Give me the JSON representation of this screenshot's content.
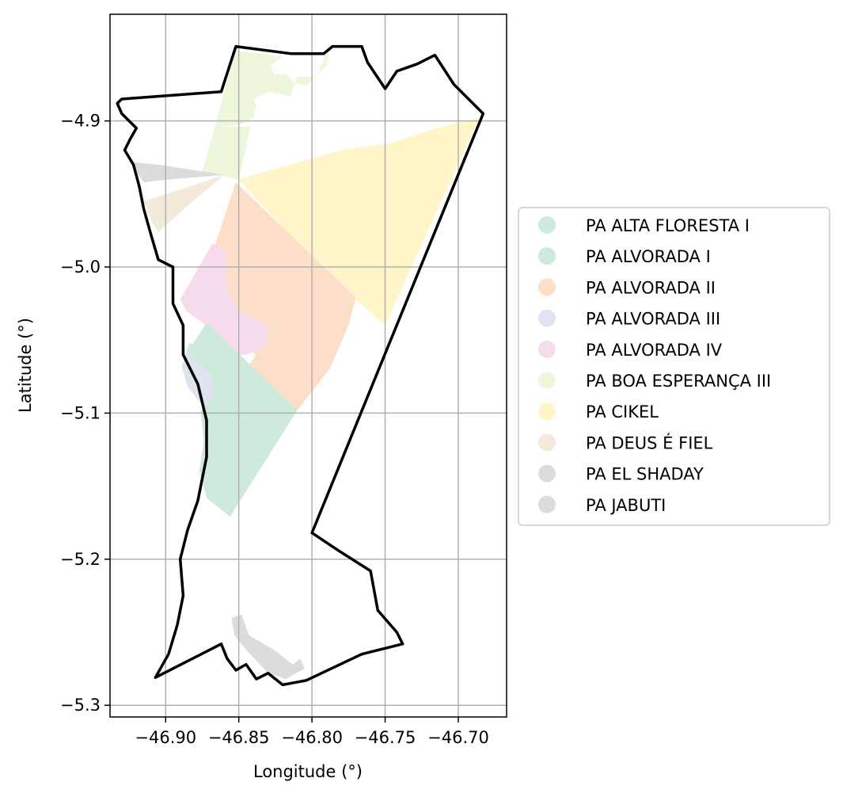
{
  "chart_data": {
    "type": "map",
    "xlabel": "Longitude (°)",
    "ylabel": "Latitude (°)",
    "x_ticks": [
      -46.9,
      -46.85,
      -46.8,
      -46.75,
      -46.7
    ],
    "x_tick_labels": [
      "−46.90",
      "−46.85",
      "−46.80",
      "−46.75",
      "−46.70"
    ],
    "y_ticks": [
      -4.9,
      -5.0,
      -5.1,
      -5.2,
      -5.3
    ],
    "y_tick_labels": [
      "−4.9",
      "−5.0",
      "−5.1",
      "−5.2",
      "−5.3"
    ],
    "xlim": [
      -46.938,
      -46.667
    ],
    "ylim": [
      -5.308,
      -4.827
    ],
    "grid": true,
    "legend_position": "right",
    "legend": [
      {
        "label": "PA ALTA FLORESTA I",
        "color": "#cdeadb"
      },
      {
        "label": "PA ALVORADA I",
        "color": "#cdeadb"
      },
      {
        "label": "PA ALVORADA II",
        "color": "#fddec8"
      },
      {
        "label": "PA ALVORADA III",
        "color": "#dfe3f0"
      },
      {
        "label": "PA ALVORADA IV",
        "color": "#f5dbeb"
      },
      {
        "label": "PA BOA ESPERANÇA III",
        "color": "#ecf7db"
      },
      {
        "label": "PA CIKEL",
        "color": "#fff5c8"
      },
      {
        "label": "PA DEUS É FIEL",
        "color": "#f3eadb"
      },
      {
        "label": "PA EL SHADAY",
        "color": "#dcdcdc"
      },
      {
        "label": "PA JABUTI",
        "color": "#dcdcdc"
      }
    ],
    "regions": [
      {
        "name": "PA BOA ESPERANÇA III",
        "color": "#ecf7db",
        "coords": [
          [
            -46.852,
            -4.852
          ],
          [
            -46.82,
            -4.856
          ],
          [
            -46.828,
            -4.862
          ],
          [
            -46.826,
            -4.868
          ],
          [
            -46.818,
            -4.868
          ],
          [
            -46.812,
            -4.874
          ],
          [
            -46.804,
            -4.876
          ],
          [
            -46.79,
            -4.862
          ],
          [
            -46.788,
            -4.848
          ],
          [
            -46.797,
            -4.87
          ],
          [
            -46.81,
            -4.87
          ],
          [
            -46.815,
            -4.883
          ],
          [
            -46.83,
            -4.88
          ],
          [
            -46.84,
            -4.885
          ],
          [
            -46.838,
            -4.89
          ],
          [
            -46.84,
            -4.898
          ],
          [
            -46.848,
            -4.902
          ],
          [
            -46.86,
            -4.904
          ],
          [
            -46.842,
            -4.904
          ],
          [
            -46.85,
            -4.94
          ],
          [
            -46.875,
            -4.935
          ]
        ]
      },
      {
        "name": "PA CIKEL",
        "color": "#fff5c8",
        "coords": [
          [
            -46.85,
            -4.94
          ],
          [
            -46.815,
            -4.93
          ],
          [
            -46.78,
            -4.92
          ],
          [
            -46.745,
            -4.915
          ],
          [
            -46.715,
            -4.905
          ],
          [
            -46.686,
            -4.898
          ],
          [
            -46.75,
            -5.04
          ],
          [
            -46.8,
            -4.995
          ]
        ]
      },
      {
        "name": "PA EL SHADAY",
        "color": "#dcdcdc",
        "coords": [
          [
            -46.925,
            -4.928
          ],
          [
            -46.905,
            -4.93
          ],
          [
            -46.885,
            -4.933
          ],
          [
            -46.86,
            -4.937
          ],
          [
            -46.897,
            -4.94
          ],
          [
            -46.915,
            -4.942
          ]
        ]
      },
      {
        "name": "PA DEUS É FIEL",
        "color": "#f3eadb",
        "coords": [
          [
            -46.915,
            -4.955
          ],
          [
            -46.89,
            -4.947
          ],
          [
            -46.86,
            -4.937
          ],
          [
            -46.885,
            -4.958
          ],
          [
            -46.905,
            -4.976
          ],
          [
            -46.91,
            -4.968
          ]
        ]
      },
      {
        "name": "PA ALVORADA II",
        "color": "#fddec8",
        "coords": [
          [
            -46.852,
            -4.942
          ],
          [
            -46.77,
            -5.021
          ],
          [
            -46.775,
            -5.04
          ],
          [
            -46.788,
            -5.07
          ],
          [
            -46.81,
            -5.098
          ],
          [
            -46.832,
            -5.085
          ],
          [
            -46.845,
            -5.07
          ],
          [
            -46.838,
            -5.06
          ],
          [
            -46.855,
            -5.05
          ],
          [
            -46.85,
            -5.04
          ],
          [
            -46.857,
            -5.033
          ],
          [
            -46.862,
            -5.015
          ],
          [
            -46.86,
            -5.0
          ],
          [
            -46.868,
            -4.99
          ]
        ]
      },
      {
        "name": "PA ALVORADA IV",
        "color": "#f5dbeb",
        "coords": [
          [
            -46.868,
            -4.984
          ],
          [
            -46.858,
            -4.99
          ],
          [
            -46.858,
            -5.015
          ],
          [
            -46.85,
            -5.03
          ],
          [
            -46.83,
            -5.04
          ],
          [
            -46.832,
            -5.055
          ],
          [
            -46.845,
            -5.06
          ],
          [
            -46.86,
            -5.06
          ],
          [
            -46.872,
            -5.04
          ],
          [
            -46.886,
            -5.03
          ],
          [
            -46.89,
            -5.022
          ]
        ]
      },
      {
        "name": "PA ALVORADA III",
        "color": "#dfe3f0",
        "coords": [
          [
            -46.884,
            -5.052
          ],
          [
            -46.865,
            -5.058
          ],
          [
            -46.848,
            -5.08
          ],
          [
            -46.86,
            -5.092
          ],
          [
            -46.874,
            -5.096
          ],
          [
            -46.885,
            -5.082
          ],
          [
            -46.889,
            -5.068
          ]
        ]
      },
      {
        "name": "PA ALVORADA I",
        "color": "#cdeadb",
        "coords": [
          [
            -46.872,
            -5.038
          ],
          [
            -46.81,
            -5.098
          ],
          [
            -46.856,
            -5.171
          ],
          [
            -46.872,
            -5.158
          ],
          [
            -46.877,
            -5.14
          ],
          [
            -46.874,
            -5.12
          ],
          [
            -46.876,
            -5.098
          ],
          [
            -46.866,
            -5.088
          ],
          [
            -46.87,
            -5.072
          ],
          [
            -46.886,
            -5.06
          ]
        ]
      },
      {
        "name": "PA JABUTI",
        "color": "#dcdcdc",
        "coords": [
          [
            -46.855,
            -5.24
          ],
          [
            -46.848,
            -5.238
          ],
          [
            -46.843,
            -5.252
          ],
          [
            -46.826,
            -5.262
          ],
          [
            -46.813,
            -5.272
          ],
          [
            -46.808,
            -5.268
          ],
          [
            -46.805,
            -5.275
          ],
          [
            -46.818,
            -5.282
          ],
          [
            -46.83,
            -5.278
          ],
          [
            -46.845,
            -5.262
          ],
          [
            -46.853,
            -5.252
          ]
        ]
      }
    ],
    "boundary": [
      [
        -46.852,
        -4.849
      ],
      [
        -46.814,
        -4.854
      ],
      [
        -46.792,
        -4.854
      ],
      [
        -46.786,
        -4.849
      ],
      [
        -46.766,
        -4.849
      ],
      [
        -46.762,
        -4.86
      ],
      [
        -46.75,
        -4.878
      ],
      [
        -46.742,
        -4.866
      ],
      [
        -46.728,
        -4.861
      ],
      [
        -46.716,
        -4.855
      ],
      [
        -46.703,
        -4.875
      ],
      [
        -46.683,
        -4.895
      ],
      [
        -46.8,
        -5.182
      ],
      [
        -46.782,
        -5.194
      ],
      [
        -46.76,
        -5.208
      ],
      [
        -46.755,
        -5.235
      ],
      [
        -46.742,
        -5.25
      ],
      [
        -46.738,
        -5.258
      ],
      [
        -46.766,
        -5.265
      ],
      [
        -46.804,
        -5.283
      ],
      [
        -46.82,
        -5.286
      ],
      [
        -46.83,
        -5.278
      ],
      [
        -46.838,
        -5.282
      ],
      [
        -46.845,
        -5.272
      ],
      [
        -46.852,
        -5.276
      ],
      [
        -46.858,
        -5.268
      ],
      [
        -46.862,
        -5.258
      ],
      [
        -46.907,
        -5.281
      ],
      [
        -46.898,
        -5.265
      ],
      [
        -46.892,
        -5.245
      ],
      [
        -46.888,
        -5.225
      ],
      [
        -46.89,
        -5.2
      ],
      [
        -46.885,
        -5.18
      ],
      [
        -46.878,
        -5.16
      ],
      [
        -46.872,
        -5.13
      ],
      [
        -46.872,
        -5.105
      ],
      [
        -46.878,
        -5.08
      ],
      [
        -46.888,
        -5.06
      ],
      [
        -46.888,
        -5.04
      ],
      [
        -46.895,
        -5.025
      ],
      [
        -46.895,
        -5.0
      ],
      [
        -46.905,
        -4.995
      ],
      [
        -46.91,
        -4.978
      ],
      [
        -46.915,
        -4.96
      ],
      [
        -46.918,
        -4.945
      ],
      [
        -46.922,
        -4.93
      ],
      [
        -46.928,
        -4.92
      ],
      [
        -46.924,
        -4.912
      ],
      [
        -46.92,
        -4.905
      ],
      [
        -46.93,
        -4.895
      ],
      [
        -46.933,
        -4.888
      ],
      [
        -46.93,
        -4.885
      ],
      [
        -46.862,
        -4.88
      ]
    ]
  }
}
